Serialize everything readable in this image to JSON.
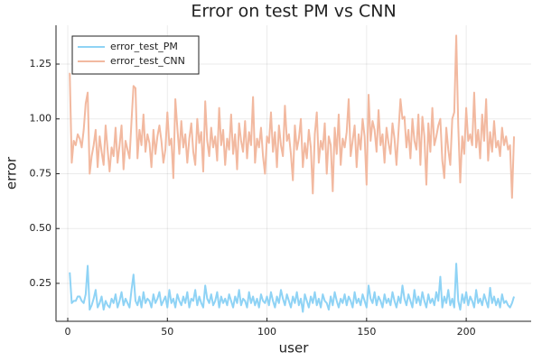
{
  "chart_data": {
    "type": "line",
    "title": "Error on test PM vs CNN",
    "x_label": "user",
    "y_label": "error",
    "x": [
      1,
      2,
      3,
      4,
      5,
      6,
      7,
      8,
      9,
      10,
      11,
      12,
      13,
      14,
      15,
      16,
      17,
      18,
      19,
      20,
      21,
      22,
      23,
      24,
      25,
      26,
      27,
      28,
      29,
      30,
      31,
      32,
      33,
      34,
      35,
      36,
      37,
      38,
      39,
      40,
      41,
      42,
      43,
      44,
      45,
      46,
      47,
      48,
      49,
      50,
      51,
      52,
      53,
      54,
      55,
      56,
      57,
      58,
      59,
      60,
      61,
      62,
      63,
      64,
      65,
      66,
      67,
      68,
      69,
      70,
      71,
      72,
      73,
      74,
      75,
      76,
      77,
      78,
      79,
      80,
      81,
      82,
      83,
      84,
      85,
      86,
      87,
      88,
      89,
      90,
      91,
      92,
      93,
      94,
      95,
      96,
      97,
      98,
      99,
      100,
      101,
      102,
      103,
      104,
      105,
      106,
      107,
      108,
      109,
      110,
      111,
      112,
      113,
      114,
      115,
      116,
      117,
      118,
      119,
      120,
      121,
      122,
      123,
      124,
      125,
      126,
      127,
      128,
      129,
      130,
      131,
      132,
      133,
      134,
      135,
      136,
      137,
      138,
      139,
      140,
      141,
      142,
      143,
      144,
      145,
      146,
      147,
      148,
      149,
      150,
      151,
      152,
      153,
      154,
      155,
      156,
      157,
      158,
      159,
      160,
      161,
      162,
      163,
      164,
      165,
      166,
      167,
      168,
      169,
      170,
      171,
      172,
      173,
      174,
      175,
      176,
      177,
      178,
      179,
      180,
      181,
      182,
      183,
      184,
      185,
      186,
      187,
      188,
      189,
      190,
      191,
      192,
      193,
      194,
      195,
      196,
      197,
      198,
      199,
      200,
      201,
      202,
      203,
      204,
      205,
      206,
      207,
      208,
      209,
      210,
      211,
      212,
      213,
      214,
      215,
      216,
      217,
      218,
      219,
      220,
      221,
      222,
      223,
      224
    ],
    "series": [
      {
        "name": "error_test_PM",
        "color": "#8fd3f5",
        "values": [
          0.3,
          0.16,
          0.17,
          0.17,
          0.19,
          0.19,
          0.17,
          0.16,
          0.2,
          0.33,
          0.13,
          0.15,
          0.18,
          0.22,
          0.14,
          0.16,
          0.19,
          0.13,
          0.17,
          0.15,
          0.14,
          0.18,
          0.16,
          0.2,
          0.14,
          0.17,
          0.21,
          0.15,
          0.18,
          0.16,
          0.14,
          0.22,
          0.29,
          0.17,
          0.15,
          0.19,
          0.14,
          0.21,
          0.16,
          0.18,
          0.17,
          0.14,
          0.2,
          0.16,
          0.18,
          0.21,
          0.15,
          0.17,
          0.19,
          0.14,
          0.22,
          0.16,
          0.18,
          0.14,
          0.2,
          0.17,
          0.15,
          0.19,
          0.16,
          0.21,
          0.14,
          0.18,
          0.17,
          0.22,
          0.15,
          0.19,
          0.16,
          0.14,
          0.24,
          0.18,
          0.16,
          0.2,
          0.15,
          0.17,
          0.21,
          0.14,
          0.19,
          0.16,
          0.18,
          0.15,
          0.2,
          0.17,
          0.14,
          0.19,
          0.16,
          0.22,
          0.15,
          0.18,
          0.17,
          0.14,
          0.21,
          0.16,
          0.19,
          0.15,
          0.18,
          0.14,
          0.2,
          0.17,
          0.16,
          0.19,
          0.15,
          0.21,
          0.17,
          0.14,
          0.19,
          0.16,
          0.22,
          0.18,
          0.15,
          0.2,
          0.17,
          0.14,
          0.19,
          0.16,
          0.21,
          0.15,
          0.18,
          0.12,
          0.2,
          0.17,
          0.14,
          0.19,
          0.16,
          0.21,
          0.15,
          0.18,
          0.14,
          0.2,
          0.17,
          0.16,
          0.13,
          0.19,
          0.15,
          0.21,
          0.17,
          0.14,
          0.18,
          0.16,
          0.2,
          0.15,
          0.19,
          0.17,
          0.14,
          0.21,
          0.16,
          0.18,
          0.15,
          0.2,
          0.17,
          0.14,
          0.24,
          0.18,
          0.16,
          0.21,
          0.15,
          0.19,
          0.17,
          0.14,
          0.2,
          0.16,
          0.18,
          0.15,
          0.21,
          0.17,
          0.14,
          0.19,
          0.16,
          0.24,
          0.18,
          0.15,
          0.2,
          0.17,
          0.14,
          0.22,
          0.16,
          0.19,
          0.15,
          0.21,
          0.17,
          0.14,
          0.2,
          0.16,
          0.18,
          0.15,
          0.21,
          0.17,
          0.28,
          0.14,
          0.19,
          0.16,
          0.22,
          0.15,
          0.18,
          0.14,
          0.34,
          0.17,
          0.13,
          0.2,
          0.16,
          0.21,
          0.15,
          0.19,
          0.17,
          0.14,
          0.22,
          0.16,
          0.18,
          0.15,
          0.2,
          0.17,
          0.14,
          0.23,
          0.16,
          0.19,
          0.15,
          0.18,
          0.14,
          0.2,
          0.16,
          0.17,
          0.15,
          0.14,
          0.16,
          0.19
        ]
      },
      {
        "name": "error_test_CNN",
        "color": "#f2b9a0",
        "values": [
          1.21,
          0.8,
          0.9,
          0.88,
          0.93,
          0.91,
          0.87,
          0.95,
          1.07,
          1.12,
          0.75,
          0.83,
          0.88,
          0.95,
          0.78,
          0.92,
          0.85,
          0.79,
          0.97,
          0.86,
          0.76,
          0.87,
          0.83,
          0.96,
          0.8,
          0.88,
          0.97,
          0.77,
          0.9,
          0.86,
          0.82,
          0.99,
          1.15,
          1.14,
          0.82,
          0.95,
          0.88,
          1.02,
          0.85,
          0.93,
          0.89,
          0.78,
          0.95,
          0.84,
          0.92,
          0.97,
          0.9,
          0.8,
          0.86,
          1.03,
          0.88,
          0.91,
          0.73,
          1.09,
          0.96,
          0.84,
          0.99,
          0.87,
          0.93,
          0.8,
          0.91,
          0.98,
          0.85,
          0.79,
          1.0,
          0.89,
          0.94,
          0.76,
          1.08,
          0.9,
          0.83,
          0.96,
          0.87,
          0.92,
          0.81,
          1.05,
          0.88,
          0.95,
          0.79,
          0.91,
          0.86,
          1.02,
          0.84,
          0.93,
          0.77,
          0.98,
          0.9,
          0.85,
          0.99,
          0.82,
          0.94,
          0.88,
          1.1,
          0.8,
          0.91,
          0.87,
          0.96,
          0.83,
          0.75,
          0.92,
          0.89,
          1.03,
          0.85,
          0.94,
          0.78,
          0.97,
          0.88,
          0.83,
          1.06,
          0.9,
          0.93,
          0.84,
          0.72,
          0.97,
          0.86,
          0.91,
          1.0,
          0.78,
          0.89,
          0.82,
          0.95,
          0.87,
          0.66,
          0.93,
          1.03,
          0.8,
          0.9,
          0.86,
          0.98,
          0.75,
          0.92,
          0.88,
          0.67,
          0.96,
          0.84,
          1.02,
          0.79,
          0.91,
          0.87,
          0.94,
          1.09,
          0.83,
          0.9,
          0.97,
          0.78,
          0.93,
          0.86,
          1.0,
          0.92,
          0.7,
          1.11,
          0.9,
          0.99,
          0.95,
          0.85,
          1.04,
          0.88,
          0.93,
          0.8,
          0.96,
          0.89,
          0.84,
          0.98,
          0.91,
          0.79,
          0.94,
          1.09,
          1.0,
          1.01,
          0.87,
          0.95,
          0.82,
          1.0,
          0.9,
          0.86,
          1.02,
          0.79,
          1.01,
          0.92,
          0.7,
          0.98,
          0.85,
          1.05,
          0.88,
          0.92,
          0.97,
          1.0,
          0.81,
          0.73,
          0.96,
          0.86,
          0.79,
          1.0,
          1.03,
          1.38,
          0.97,
          0.71,
          0.92,
          0.84,
          1.05,
          0.9,
          0.93,
          0.88,
          1.12,
          0.87,
          0.95,
          0.82,
          1.02,
          0.9,
          1.09,
          0.81,
          0.94,
          0.85,
          0.99,
          0.87,
          0.9,
          0.83,
          0.96,
          0.88,
          0.92,
          0.86,
          0.88,
          0.64,
          0.92
        ]
      }
    ],
    "xlim": [
      -5.9,
      232.6
    ],
    "xticks": [
      0,
      50,
      100,
      150,
      200
    ],
    "ylim": [
      0.077,
      1.427
    ],
    "yticks": [
      {
        "value": 0.25,
        "label": "0.25"
      },
      {
        "value": 0.5,
        "label": "0.50"
      },
      {
        "value": 0.75,
        "label": "0.75"
      },
      {
        "value": 1.0,
        "label": "1.00"
      },
      {
        "value": 1.25,
        "label": "1.25"
      }
    ],
    "grid": true,
    "legend": "top-left"
  }
}
